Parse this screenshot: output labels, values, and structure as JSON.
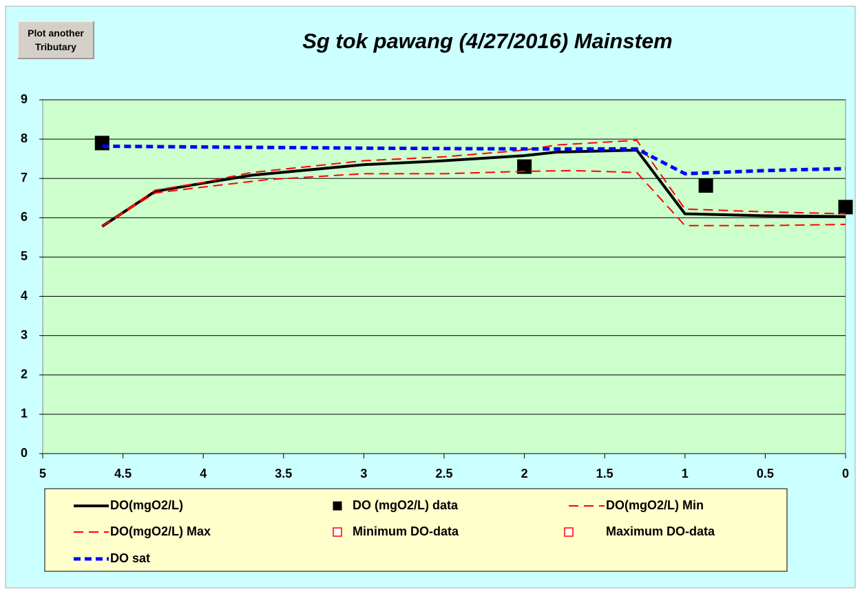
{
  "button": {
    "lines": [
      "Plot another",
      "Tributary"
    ]
  },
  "chart_data": {
    "type": "line",
    "title": "Sg tok pawang (4/27/2016) Mainstem",
    "xlim": [
      5,
      0
    ],
    "xticks": [
      5,
      4.5,
      4,
      3.5,
      3,
      2.5,
      2,
      1.5,
      1,
      0.5,
      0
    ],
    "ylim": [
      0,
      9
    ],
    "yticks": [
      0,
      1,
      2,
      3,
      4,
      5,
      6,
      7,
      8,
      9
    ],
    "grid": true,
    "series": [
      {
        "name": "DO(mgO2/L)",
        "color": "#000000",
        "line": "solid",
        "marker": "none",
        "x": [
          4.63,
          4.3,
          4.0,
          3.7,
          3.0,
          2.5,
          2.0,
          1.8,
          1.3,
          1.0,
          0.5,
          0
        ],
        "values": [
          5.78,
          6.67,
          6.88,
          7.08,
          7.35,
          7.45,
          7.58,
          7.67,
          7.72,
          6.1,
          6.05,
          6.03
        ]
      },
      {
        "name": "DO (mgO2/L) data",
        "color": "#000000",
        "line": "none",
        "marker": "square",
        "x": [
          4.63,
          2.0,
          0.87,
          0
        ],
        "values": [
          7.9,
          7.3,
          6.82,
          6.27
        ]
      },
      {
        "name": "DO(mgO2/L) Min",
        "color": "#ff0000",
        "line": "dashed",
        "marker": "none",
        "x": [
          4.63,
          4.3,
          4.0,
          3.6,
          3.0,
          2.5,
          2.0,
          1.7,
          1.3,
          1.0,
          0.5,
          0
        ],
        "values": [
          5.78,
          6.63,
          6.78,
          6.97,
          7.12,
          7.12,
          7.18,
          7.2,
          7.15,
          5.8,
          5.8,
          5.83
        ]
      },
      {
        "name": "DO(mgO2/L) Max",
        "color": "#ff0000",
        "line": "dashed",
        "marker": "none",
        "x": [
          4.63,
          4.3,
          4.0,
          3.7,
          3.0,
          2.5,
          2.0,
          1.8,
          1.3,
          1.0,
          0.5,
          0
        ],
        "values": [
          5.78,
          6.7,
          6.9,
          7.15,
          7.45,
          7.55,
          7.72,
          7.85,
          7.97,
          6.22,
          6.15,
          6.1
        ]
      },
      {
        "name": "Minimum DO-data",
        "color": "#ff0000",
        "line": "none",
        "marker": "hollow-square",
        "x": [],
        "values": []
      },
      {
        "name": "Maximum DO-data",
        "color": "#ff0000",
        "line": "none",
        "marker": "hollow-square",
        "x": [],
        "values": []
      },
      {
        "name": "DO sat",
        "color": "#0000ff",
        "line": "dotted",
        "marker": "none",
        "x": [
          4.63,
          4.0,
          3.0,
          2.0,
          1.3,
          1.0,
          0.5,
          0
        ],
        "values": [
          7.82,
          7.8,
          7.77,
          7.75,
          7.75,
          7.12,
          7.2,
          7.25
        ]
      }
    ]
  }
}
